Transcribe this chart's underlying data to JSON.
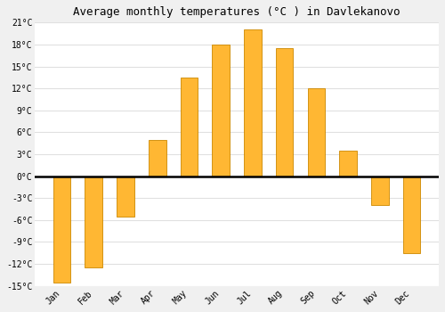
{
  "title": "Average monthly temperatures (°C ) in Davlekanovo",
  "months": [
    "Jan",
    "Feb",
    "Mar",
    "Apr",
    "May",
    "Jun",
    "Jul",
    "Aug",
    "Sep",
    "Oct",
    "Nov",
    "Dec"
  ],
  "values": [
    -14.5,
    -12.5,
    -5.5,
    5.0,
    13.5,
    18.0,
    20.0,
    17.5,
    12.0,
    3.5,
    -4.0,
    -10.5
  ],
  "bar_color_top": "#FFB733",
  "bar_color_bottom": "#FFA000",
  "bar_edge_color": "#CC8800",
  "ylim": [
    -15,
    21
  ],
  "yticks": [
    -15,
    -12,
    -9,
    -6,
    -3,
    0,
    3,
    6,
    9,
    12,
    15,
    18,
    21
  ],
  "ytick_labels": [
    "-15°C",
    "-12°C",
    "-9°C",
    "-6°C",
    "-3°C",
    "0°C",
    "3°C",
    "6°C",
    "9°C",
    "12°C",
    "15°C",
    "18°C",
    "21°C"
  ],
  "figure_bg": "#f0f0f0",
  "plot_bg": "#ffffff",
  "grid_color": "#e0e0e0",
  "title_fontsize": 9,
  "tick_fontsize": 7,
  "zero_line_color": "#000000",
  "bar_width": 0.55
}
